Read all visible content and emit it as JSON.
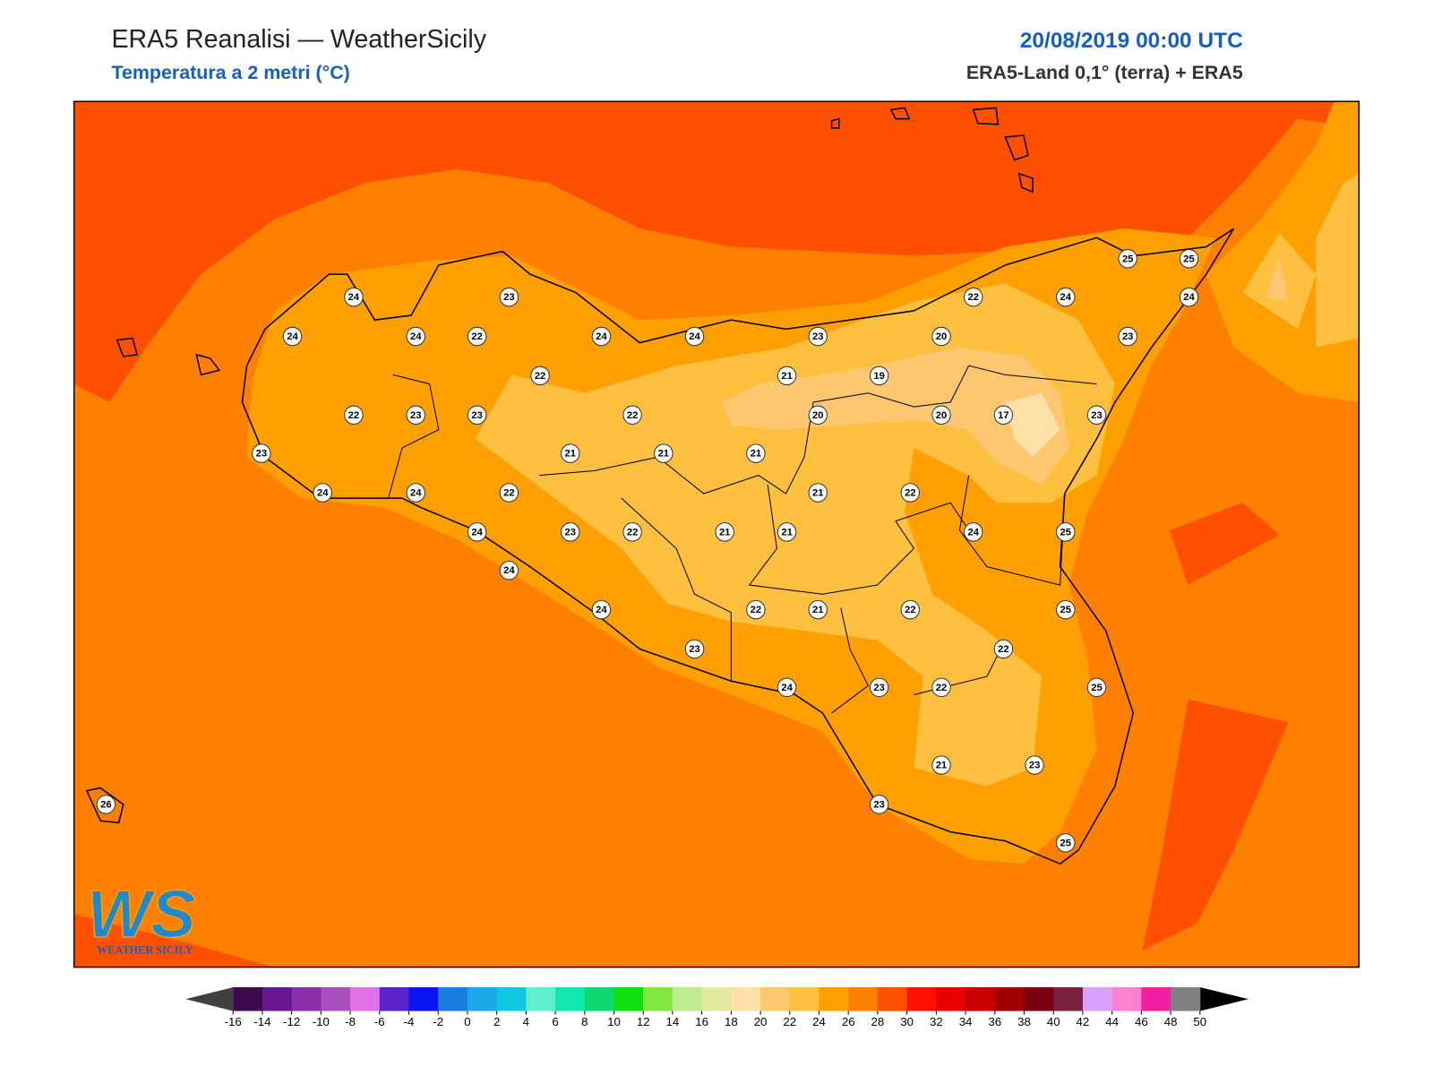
{
  "header": {
    "title": "ERA5 Reanalisi — WeatherSicily",
    "subtitle": "Temperatura a 2 metri (°C)",
    "datetime": "20/08/2019 00:00 UTC",
    "source": "ERA5-Land 0,1° (terra) + ERA5"
  },
  "logo": {
    "mark": "WS",
    "name": "WEATHER SICILY"
  },
  "stations": [
    24,
    23,
    24,
    24,
    22,
    24,
    24,
    23,
    20,
    22,
    24,
    25,
    25,
    24,
    23,
    22,
    21,
    19,
    22,
    23,
    23,
    22,
    20,
    20,
    17,
    23,
    23,
    21,
    21,
    21,
    24,
    24,
    22,
    21,
    22,
    24,
    23,
    22,
    21,
    21,
    24,
    25,
    24,
    24,
    22,
    21,
    22,
    25,
    23,
    22,
    24,
    23,
    22,
    25,
    21,
    23,
    23,
    25,
    26
  ],
  "colorbar": {
    "ticks": [
      -16,
      -14,
      -12,
      -10,
      -8,
      -6,
      -4,
      -2,
      0,
      2,
      4,
      6,
      8,
      10,
      12,
      14,
      16,
      18,
      20,
      22,
      24,
      26,
      28,
      30,
      32,
      34,
      36,
      38,
      40,
      42,
      44,
      46,
      48,
      50
    ],
    "colors": [
      "#3d0a4f",
      "#6a1591",
      "#8a2fa8",
      "#a94fc0",
      "#e070e8",
      "#5a22c8",
      "#0a14f0",
      "#1a7ee0",
      "#1aa8e8",
      "#10c8e0",
      "#60f0d0",
      "#10e8b0",
      "#10d870",
      "#10e010",
      "#80e840",
      "#c0ec90",
      "#e0e8a0",
      "#ffe0a8",
      "#ffc870",
      "#ffc040",
      "#ffa000",
      "#ff8000",
      "#ff5000",
      "#ff1000",
      "#e80000",
      "#c80000",
      "#a00000",
      "#7a0010",
      "#7a2040",
      "#d8a0f8",
      "#ff80d0",
      "#f020a0",
      "#808080"
    ],
    "under_color": "#404040",
    "over_color": "#000000"
  }
}
